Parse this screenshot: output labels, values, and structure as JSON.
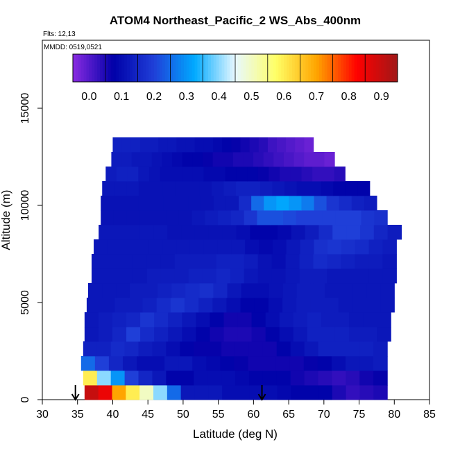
{
  "chart_data": {
    "type": "heatmap",
    "title": "ATOM4 Northeast_Pacific_2 WS_Abs_400nm",
    "flights_label": "Flts: 12,13",
    "dates_label": "MMDD: 0519,0521",
    "xlabel": "Latitude (deg N)",
    "ylabel": "Altitude (m)",
    "xlim": [
      30,
      85
    ],
    "ylim": [
      0,
      18500
    ],
    "xticks": [
      "30",
      "35",
      "40",
      "45",
      "50",
      "55",
      "60",
      "65",
      "70",
      "75",
      "80",
      "85"
    ],
    "yticks": [
      "0",
      "5000",
      "10000",
      "15000"
    ],
    "colorbar": {
      "range": [
        -0.05,
        0.95
      ],
      "ticks": [
        "0.0",
        "0.1",
        "0.2",
        "0.3",
        "0.4",
        "0.5",
        "0.6",
        "0.7",
        "0.8",
        "0.9"
      ],
      "colors": [
        "#8a2be2",
        "#0000a8",
        "#1f3fd8",
        "#00aaff",
        "#e8f8ff",
        "#ffff66",
        "#ffa500",
        "#ff0000",
        "#a01818"
      ]
    },
    "grid": false,
    "legend": "none",
    "layers": [
      {
        "alt": 0,
        "lat_start": 36.0,
        "lat_end": 79.0,
        "values": [
          0.9,
          0.85,
          0.7,
          0.6,
          0.5,
          0.4,
          0.25,
          0.12,
          0.12,
          0.12,
          0.1,
          0.1,
          0.1,
          0.1,
          0.09,
          0.08,
          0.08,
          0.08,
          0.05,
          0.03,
          0.04,
          0.05
        ]
      },
      {
        "alt": 750,
        "lat_start": 35.8,
        "lat_end": 79.0,
        "values": [
          0.6,
          0.4,
          0.3,
          0.2,
          0.15,
          0.12,
          0.08,
          0.08,
          0.1,
          0.1,
          0.1,
          0.09,
          0.08,
          0.08,
          0.08,
          0.06,
          0.05,
          0.04,
          0.03,
          0.04,
          0.06,
          0.07
        ]
      },
      {
        "alt": 1500,
        "lat_start": 35.5,
        "lat_end": 79.0,
        "values": [
          0.25,
          0.2,
          0.15,
          0.12,
          0.1,
          0.1,
          0.12,
          0.12,
          0.1,
          0.09,
          0.08,
          0.07,
          0.06,
          0.06,
          0.06,
          0.06,
          0.07,
          0.08,
          0.1,
          0.12,
          0.12,
          0.13
        ]
      },
      {
        "alt": 2250,
        "lat_start": 35.8,
        "lat_end": 79.0,
        "values": [
          0.14,
          0.14,
          0.16,
          0.15,
          0.13,
          0.12,
          0.1,
          0.08,
          0.07,
          0.07,
          0.06,
          0.06,
          0.06,
          0.06,
          0.08,
          0.1,
          0.12,
          0.14,
          0.14,
          0.14,
          0.14,
          0.13
        ]
      },
      {
        "alt": 3000,
        "lat_start": 36.0,
        "lat_end": 79.5,
        "values": [
          0.12,
          0.13,
          0.15,
          0.2,
          0.16,
          0.14,
          0.12,
          0.1,
          0.08,
          0.06,
          0.05,
          0.05,
          0.06,
          0.08,
          0.1,
          0.12,
          0.14,
          0.14,
          0.14,
          0.13,
          0.13,
          0.12
        ]
      },
      {
        "alt": 3750,
        "lat_start": 36.0,
        "lat_end": 79.5,
        "values": [
          0.12,
          0.13,
          0.14,
          0.15,
          0.18,
          0.16,
          0.14,
          0.12,
          0.1,
          0.08,
          0.06,
          0.06,
          0.08,
          0.1,
          0.12,
          0.13,
          0.14,
          0.13,
          0.13,
          0.12,
          0.12,
          0.12
        ]
      },
      {
        "alt": 4500,
        "lat_start": 36.3,
        "lat_end": 80.0,
        "values": [
          0.12,
          0.12,
          0.13,
          0.13,
          0.14,
          0.16,
          0.18,
          0.16,
          0.14,
          0.12,
          0.1,
          0.08,
          0.08,
          0.1,
          0.12,
          0.13,
          0.13,
          0.13,
          0.12,
          0.12,
          0.12,
          0.12
        ]
      },
      {
        "alt": 5250,
        "lat_start": 36.5,
        "lat_end": 80.0,
        "values": [
          0.12,
          0.12,
          0.12,
          0.13,
          0.13,
          0.14,
          0.15,
          0.16,
          0.17,
          0.15,
          0.12,
          0.1,
          0.1,
          0.11,
          0.12,
          0.13,
          0.13,
          0.12,
          0.12,
          0.12,
          0.12,
          0.12
        ]
      },
      {
        "alt": 6000,
        "lat_start": 37.0,
        "lat_end": 80.3,
        "values": [
          0.12,
          0.12,
          0.12,
          0.12,
          0.13,
          0.13,
          0.13,
          0.14,
          0.14,
          0.15,
          0.14,
          0.12,
          0.11,
          0.11,
          0.12,
          0.13,
          0.13,
          0.12,
          0.12,
          0.12,
          0.12,
          0.12
        ]
      },
      {
        "alt": 6750,
        "lat_start": 37.0,
        "lat_end": 80.3,
        "values": [
          0.12,
          0.12,
          0.12,
          0.12,
          0.12,
          0.12,
          0.13,
          0.13,
          0.13,
          0.14,
          0.14,
          0.13,
          0.11,
          0.1,
          0.12,
          0.14,
          0.16,
          0.15,
          0.14,
          0.13,
          0.13,
          0.12
        ]
      },
      {
        "alt": 7500,
        "lat_start": 37.3,
        "lat_end": 80.3,
        "values": [
          0.12,
          0.12,
          0.12,
          0.12,
          0.12,
          0.12,
          0.12,
          0.12,
          0.12,
          0.12,
          0.12,
          0.1,
          0.09,
          0.1,
          0.12,
          0.14,
          0.17,
          0.18,
          0.17,
          0.16,
          0.14,
          0.13
        ]
      },
      {
        "alt": 8250,
        "lat_start": 38.0,
        "lat_end": 81.0,
        "values": [
          0.12,
          0.12,
          0.12,
          0.12,
          0.12,
          0.11,
          0.11,
          0.11,
          0.11,
          0.11,
          0.1,
          0.08,
          0.08,
          0.09,
          0.11,
          0.13,
          0.16,
          0.2,
          0.2,
          0.18,
          0.15,
          0.13
        ]
      },
      {
        "alt": 9000,
        "lat_start": 38.3,
        "lat_end": 79.0,
        "values": [
          0.11,
          0.11,
          0.11,
          0.11,
          0.11,
          0.11,
          0.11,
          0.12,
          0.13,
          0.14,
          0.15,
          0.18,
          0.22,
          0.22,
          0.21,
          0.2,
          0.2,
          0.2,
          0.2,
          0.2,
          0.18,
          0.17
        ]
      },
      {
        "alt": 9750,
        "lat_start": 38.3,
        "lat_end": 77.5,
        "values": [
          0.11,
          0.11,
          0.11,
          0.11,
          0.11,
          0.11,
          0.11,
          0.11,
          0.11,
          0.12,
          0.12,
          0.16,
          0.25,
          0.3,
          0.32,
          0.3,
          0.27,
          0.22,
          0.18,
          0.16,
          0.14,
          0.13
        ]
      },
      {
        "alt": 10500,
        "lat_start": 38.5,
        "lat_end": 76.5,
        "values": [
          0.12,
          0.12,
          0.12,
          0.11,
          0.11,
          0.11,
          0.11,
          0.11,
          0.11,
          0.12,
          0.13,
          0.14,
          0.14,
          0.13,
          0.12,
          0.11,
          0.1,
          0.1,
          0.09,
          0.08,
          0.08,
          0.08
        ]
      },
      {
        "alt": 11250,
        "lat_start": 39.0,
        "lat_end": 73.0,
        "values": [
          0.13,
          0.14,
          0.14,
          0.12,
          0.11,
          0.1,
          0.1,
          0.1,
          0.1,
          0.09,
          0.09,
          0.08,
          0.08,
          0.08,
          0.07,
          0.06,
          0.05,
          0.05,
          0.04,
          0.03,
          0.03,
          0.04
        ]
      },
      {
        "alt": 12000,
        "lat_start": 39.8,
        "lat_end": 71.5,
        "values": [
          0.13,
          0.13,
          0.12,
          0.12,
          0.11,
          0.1,
          0.09,
          0.08,
          0.08,
          0.07,
          0.06,
          0.06,
          0.05,
          0.05,
          0.04,
          0.03,
          0.02,
          0.01,
          0.0,
          -0.01,
          -0.01,
          -0.02
        ]
      },
      {
        "alt": 12750,
        "lat_start": 40.0,
        "lat_end": 68.5,
        "values": [
          0.14,
          0.14,
          0.14,
          0.13,
          0.13,
          0.12,
          0.12,
          0.11,
          0.11,
          0.1,
          0.1,
          0.09,
          0.08,
          0.07,
          0.06,
          0.05,
          0.04,
          0.02,
          0.01,
          0.0,
          -0.01,
          -0.02
        ]
      }
    ],
    "annotations": [
      {
        "type": "arrow-down",
        "lat": 34.7,
        "alt": 0
      },
      {
        "type": "arrow-down",
        "lat": 61.2,
        "alt": 0
      }
    ]
  }
}
